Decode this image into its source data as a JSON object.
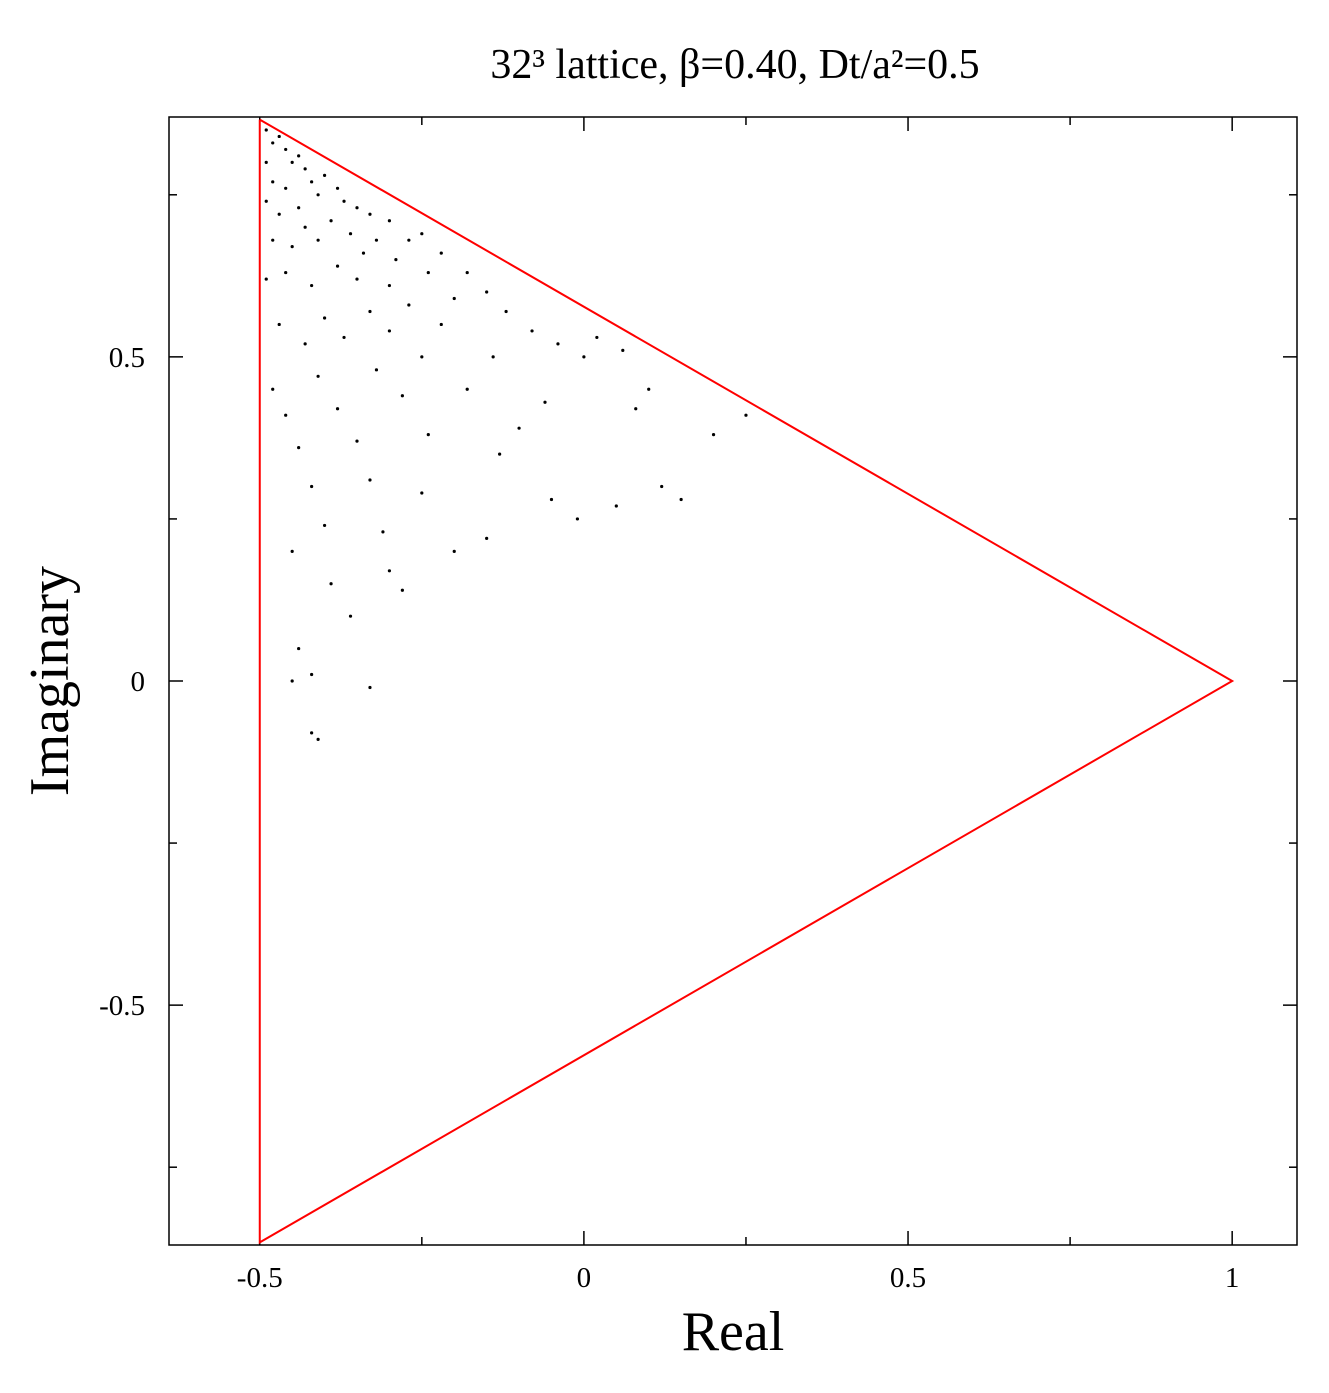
{
  "chart_data": {
    "type": "scatter",
    "title": "32³ lattice,  β=0.40,  Dt/a²=0.5",
    "xlabel": "Real",
    "ylabel": "Imaginary",
    "xlim": [
      -0.64,
      1.1
    ],
    "ylim": [
      -0.87,
      0.87
    ],
    "xticks": [
      -0.5,
      0,
      0.5,
      1
    ],
    "yticks": [
      -0.5,
      0,
      0.5
    ],
    "xminor": [
      -0.25,
      0.25,
      0.75
    ],
    "yminor": [
      -0.75,
      -0.25,
      0.25,
      0.75
    ],
    "grid": false,
    "series": [
      {
        "type": "scatter",
        "color": "#000000",
        "x": [
          -0.49,
          -0.48,
          -0.47,
          -0.46,
          -0.49,
          -0.45,
          -0.44,
          -0.43,
          -0.48,
          -0.46,
          -0.42,
          -0.4,
          -0.41,
          -0.38,
          -0.37,
          -0.49,
          -0.47,
          -0.44,
          -0.35,
          -0.33,
          -0.3,
          -0.39,
          -0.43,
          -0.48,
          -0.45,
          -0.41,
          -0.36,
          -0.32,
          -0.27,
          -0.25,
          -0.22,
          -0.29,
          -0.34,
          -0.38,
          -0.46,
          -0.49,
          -0.42,
          -0.35,
          -0.3,
          -0.24,
          -0.18,
          -0.15,
          -0.2,
          -0.27,
          -0.33,
          -0.4,
          -0.47,
          -0.43,
          -0.37,
          -0.3,
          -0.22,
          -0.12,
          -0.08,
          -0.04,
          0.02,
          0.06,
          -0.14,
          -0.25,
          -0.32,
          -0.41,
          -0.48,
          -0.46,
          -0.38,
          -0.28,
          -0.18,
          -0.06,
          0.08,
          -0.44,
          -0.35,
          -0.24,
          -0.13,
          -0.42,
          -0.33,
          -0.25,
          -0.4,
          -0.31,
          -0.45,
          -0.44,
          -0.45,
          -0.42,
          -0.33,
          -0.42,
          -0.41,
          0.2,
          0.25,
          0.12,
          0.15,
          0.05,
          -0.01,
          -0.05,
          0.1,
          0.0,
          -0.1,
          -0.36,
          -0.39,
          -0.3,
          -0.28,
          -0.2,
          -0.15
        ],
        "y": [
          0.85,
          0.83,
          0.84,
          0.82,
          0.8,
          0.8,
          0.81,
          0.79,
          0.77,
          0.76,
          0.77,
          0.78,
          0.75,
          0.76,
          0.74,
          0.74,
          0.72,
          0.73,
          0.73,
          0.72,
          0.71,
          0.71,
          0.7,
          0.68,
          0.67,
          0.68,
          0.69,
          0.68,
          0.68,
          0.69,
          0.66,
          0.65,
          0.66,
          0.64,
          0.63,
          0.62,
          0.61,
          0.62,
          0.61,
          0.63,
          0.63,
          0.6,
          0.59,
          0.58,
          0.57,
          0.56,
          0.55,
          0.52,
          0.53,
          0.54,
          0.55,
          0.57,
          0.54,
          0.52,
          0.53,
          0.51,
          0.5,
          0.5,
          0.48,
          0.47,
          0.45,
          0.41,
          0.42,
          0.44,
          0.45,
          0.43,
          0.42,
          0.36,
          0.37,
          0.38,
          0.35,
          0.3,
          0.31,
          0.29,
          0.24,
          0.23,
          0.2,
          0.05,
          0.0,
          0.01,
          -0.01,
          -0.08,
          -0.09,
          0.38,
          0.41,
          0.3,
          0.28,
          0.27,
          0.25,
          0.28,
          0.45,
          0.5,
          0.39,
          0.1,
          0.15,
          0.17,
          0.14,
          0.2,
          0.22
        ]
      },
      {
        "type": "line",
        "color": "#ff0000",
        "x": [
          -0.5,
          1,
          -0.5,
          -0.5
        ],
        "y": [
          0.866,
          0,
          -0.866,
          0.866
        ]
      }
    ]
  }
}
